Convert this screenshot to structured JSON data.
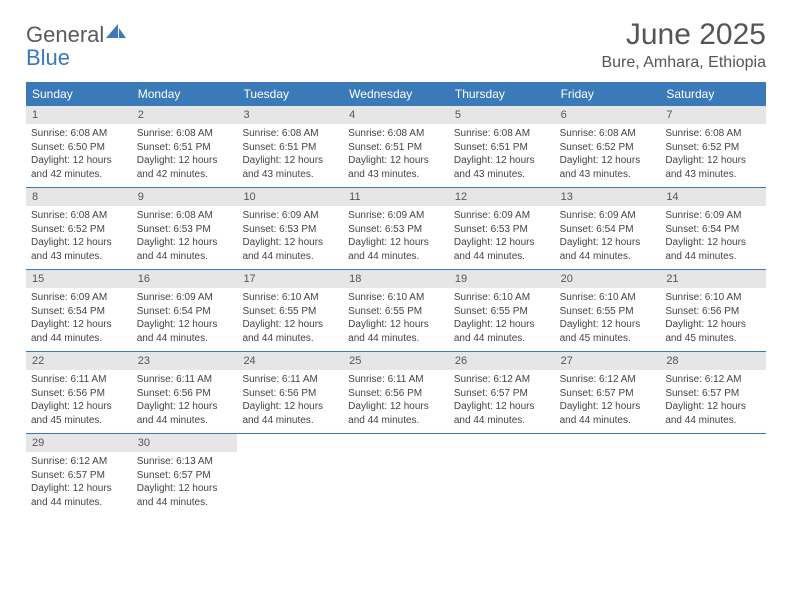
{
  "brand": {
    "part1": "General",
    "part2": "Blue"
  },
  "title": "June 2025",
  "location": "Bure, Amhara, Ethiopia",
  "colors": {
    "header_bg": "#3a7ab8",
    "daynum_bg": "#e6e6e6",
    "text": "#555555"
  },
  "day_names": [
    "Sunday",
    "Monday",
    "Tuesday",
    "Wednesday",
    "Thursday",
    "Friday",
    "Saturday"
  ],
  "weeks": [
    [
      {
        "num": "1",
        "sunrise": "Sunrise: 6:08 AM",
        "sunset": "Sunset: 6:50 PM",
        "day1": "Daylight: 12 hours",
        "day2": "and 42 minutes."
      },
      {
        "num": "2",
        "sunrise": "Sunrise: 6:08 AM",
        "sunset": "Sunset: 6:51 PM",
        "day1": "Daylight: 12 hours",
        "day2": "and 42 minutes."
      },
      {
        "num": "3",
        "sunrise": "Sunrise: 6:08 AM",
        "sunset": "Sunset: 6:51 PM",
        "day1": "Daylight: 12 hours",
        "day2": "and 43 minutes."
      },
      {
        "num": "4",
        "sunrise": "Sunrise: 6:08 AM",
        "sunset": "Sunset: 6:51 PM",
        "day1": "Daylight: 12 hours",
        "day2": "and 43 minutes."
      },
      {
        "num": "5",
        "sunrise": "Sunrise: 6:08 AM",
        "sunset": "Sunset: 6:51 PM",
        "day1": "Daylight: 12 hours",
        "day2": "and 43 minutes."
      },
      {
        "num": "6",
        "sunrise": "Sunrise: 6:08 AM",
        "sunset": "Sunset: 6:52 PM",
        "day1": "Daylight: 12 hours",
        "day2": "and 43 minutes."
      },
      {
        "num": "7",
        "sunrise": "Sunrise: 6:08 AM",
        "sunset": "Sunset: 6:52 PM",
        "day1": "Daylight: 12 hours",
        "day2": "and 43 minutes."
      }
    ],
    [
      {
        "num": "8",
        "sunrise": "Sunrise: 6:08 AM",
        "sunset": "Sunset: 6:52 PM",
        "day1": "Daylight: 12 hours",
        "day2": "and 43 minutes."
      },
      {
        "num": "9",
        "sunrise": "Sunrise: 6:08 AM",
        "sunset": "Sunset: 6:53 PM",
        "day1": "Daylight: 12 hours",
        "day2": "and 44 minutes."
      },
      {
        "num": "10",
        "sunrise": "Sunrise: 6:09 AM",
        "sunset": "Sunset: 6:53 PM",
        "day1": "Daylight: 12 hours",
        "day2": "and 44 minutes."
      },
      {
        "num": "11",
        "sunrise": "Sunrise: 6:09 AM",
        "sunset": "Sunset: 6:53 PM",
        "day1": "Daylight: 12 hours",
        "day2": "and 44 minutes."
      },
      {
        "num": "12",
        "sunrise": "Sunrise: 6:09 AM",
        "sunset": "Sunset: 6:53 PM",
        "day1": "Daylight: 12 hours",
        "day2": "and 44 minutes."
      },
      {
        "num": "13",
        "sunrise": "Sunrise: 6:09 AM",
        "sunset": "Sunset: 6:54 PM",
        "day1": "Daylight: 12 hours",
        "day2": "and 44 minutes."
      },
      {
        "num": "14",
        "sunrise": "Sunrise: 6:09 AM",
        "sunset": "Sunset: 6:54 PM",
        "day1": "Daylight: 12 hours",
        "day2": "and 44 minutes."
      }
    ],
    [
      {
        "num": "15",
        "sunrise": "Sunrise: 6:09 AM",
        "sunset": "Sunset: 6:54 PM",
        "day1": "Daylight: 12 hours",
        "day2": "and 44 minutes."
      },
      {
        "num": "16",
        "sunrise": "Sunrise: 6:09 AM",
        "sunset": "Sunset: 6:54 PM",
        "day1": "Daylight: 12 hours",
        "day2": "and 44 minutes."
      },
      {
        "num": "17",
        "sunrise": "Sunrise: 6:10 AM",
        "sunset": "Sunset: 6:55 PM",
        "day1": "Daylight: 12 hours",
        "day2": "and 44 minutes."
      },
      {
        "num": "18",
        "sunrise": "Sunrise: 6:10 AM",
        "sunset": "Sunset: 6:55 PM",
        "day1": "Daylight: 12 hours",
        "day2": "and 44 minutes."
      },
      {
        "num": "19",
        "sunrise": "Sunrise: 6:10 AM",
        "sunset": "Sunset: 6:55 PM",
        "day1": "Daylight: 12 hours",
        "day2": "and 44 minutes."
      },
      {
        "num": "20",
        "sunrise": "Sunrise: 6:10 AM",
        "sunset": "Sunset: 6:55 PM",
        "day1": "Daylight: 12 hours",
        "day2": "and 45 minutes."
      },
      {
        "num": "21",
        "sunrise": "Sunrise: 6:10 AM",
        "sunset": "Sunset: 6:56 PM",
        "day1": "Daylight: 12 hours",
        "day2": "and 45 minutes."
      }
    ],
    [
      {
        "num": "22",
        "sunrise": "Sunrise: 6:11 AM",
        "sunset": "Sunset: 6:56 PM",
        "day1": "Daylight: 12 hours",
        "day2": "and 45 minutes."
      },
      {
        "num": "23",
        "sunrise": "Sunrise: 6:11 AM",
        "sunset": "Sunset: 6:56 PM",
        "day1": "Daylight: 12 hours",
        "day2": "and 44 minutes."
      },
      {
        "num": "24",
        "sunrise": "Sunrise: 6:11 AM",
        "sunset": "Sunset: 6:56 PM",
        "day1": "Daylight: 12 hours",
        "day2": "and 44 minutes."
      },
      {
        "num": "25",
        "sunrise": "Sunrise: 6:11 AM",
        "sunset": "Sunset: 6:56 PM",
        "day1": "Daylight: 12 hours",
        "day2": "and 44 minutes."
      },
      {
        "num": "26",
        "sunrise": "Sunrise: 6:12 AM",
        "sunset": "Sunset: 6:57 PM",
        "day1": "Daylight: 12 hours",
        "day2": "and 44 minutes."
      },
      {
        "num": "27",
        "sunrise": "Sunrise: 6:12 AM",
        "sunset": "Sunset: 6:57 PM",
        "day1": "Daylight: 12 hours",
        "day2": "and 44 minutes."
      },
      {
        "num": "28",
        "sunrise": "Sunrise: 6:12 AM",
        "sunset": "Sunset: 6:57 PM",
        "day1": "Daylight: 12 hours",
        "day2": "and 44 minutes."
      }
    ],
    [
      {
        "num": "29",
        "sunrise": "Sunrise: 6:12 AM",
        "sunset": "Sunset: 6:57 PM",
        "day1": "Daylight: 12 hours",
        "day2": "and 44 minutes."
      },
      {
        "num": "30",
        "sunrise": "Sunrise: 6:13 AM",
        "sunset": "Sunset: 6:57 PM",
        "day1": "Daylight: 12 hours",
        "day2": "and 44 minutes."
      },
      null,
      null,
      null,
      null,
      null
    ]
  ]
}
